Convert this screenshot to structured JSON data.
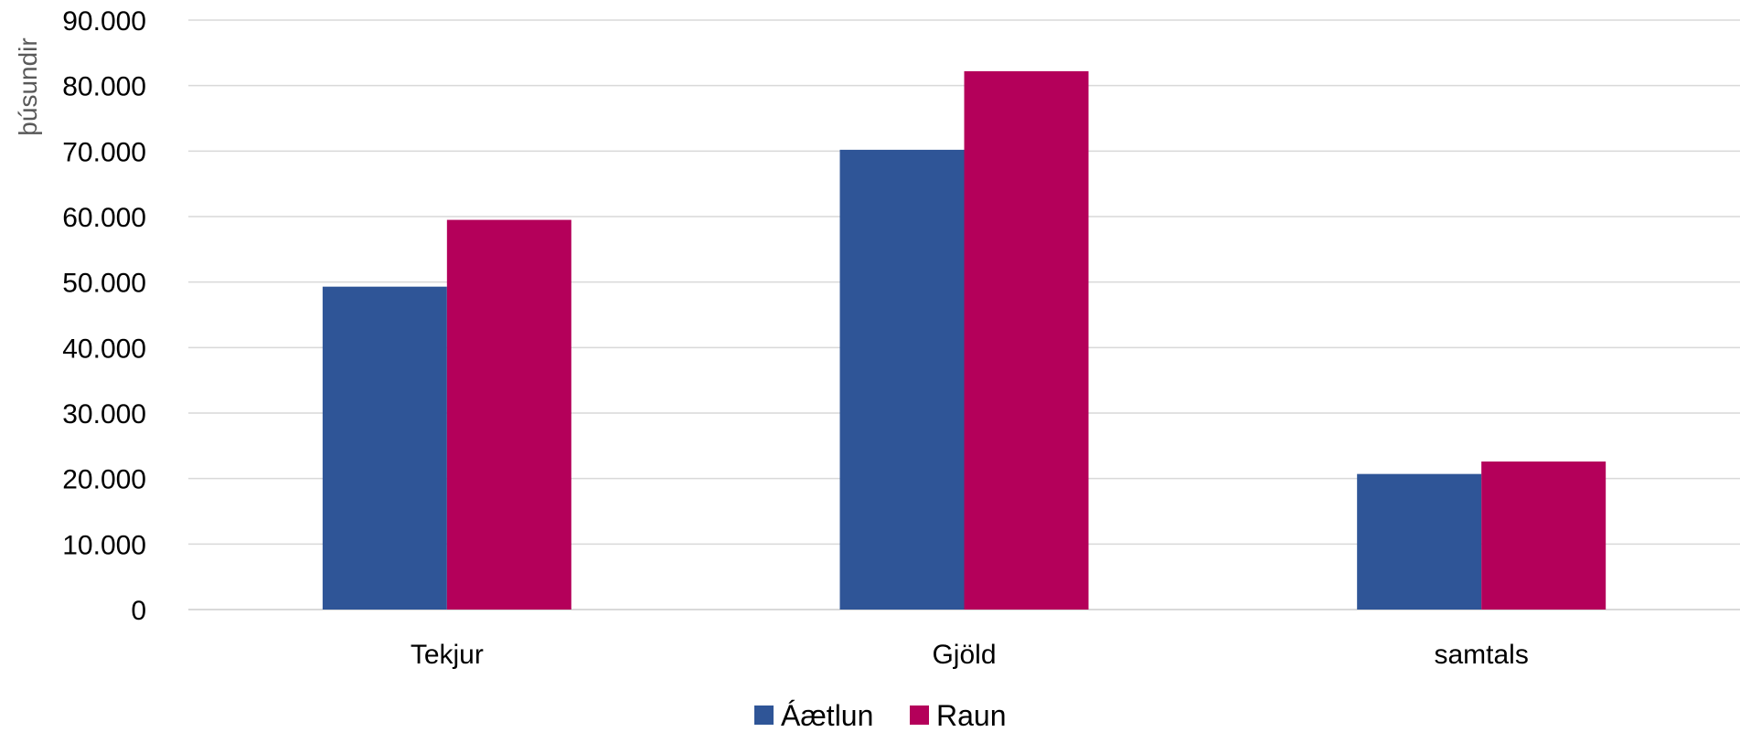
{
  "chart_data": {
    "type": "bar",
    "categories": [
      "Tekjur",
      "Gjöld",
      "samtals"
    ],
    "series": [
      {
        "name": "Áætlun",
        "color": "#2f5597",
        "values": [
          49300,
          70200,
          20700
        ]
      },
      {
        "name": "Raun",
        "color": "#b4005a",
        "values": [
          59500,
          82200,
          22600
        ]
      }
    ],
    "ylabel": "þúsundir",
    "ylim": [
      0,
      90000
    ],
    "yticks": [
      0,
      10000,
      20000,
      30000,
      40000,
      50000,
      60000,
      70000,
      80000,
      90000
    ],
    "ytick_labels": [
      "0",
      "10.000",
      "20.000",
      "30.000",
      "40.000",
      "50.000",
      "60.000",
      "70.000",
      "80.000",
      "90.000"
    ],
    "grid": true,
    "legend_position": "bottom"
  }
}
